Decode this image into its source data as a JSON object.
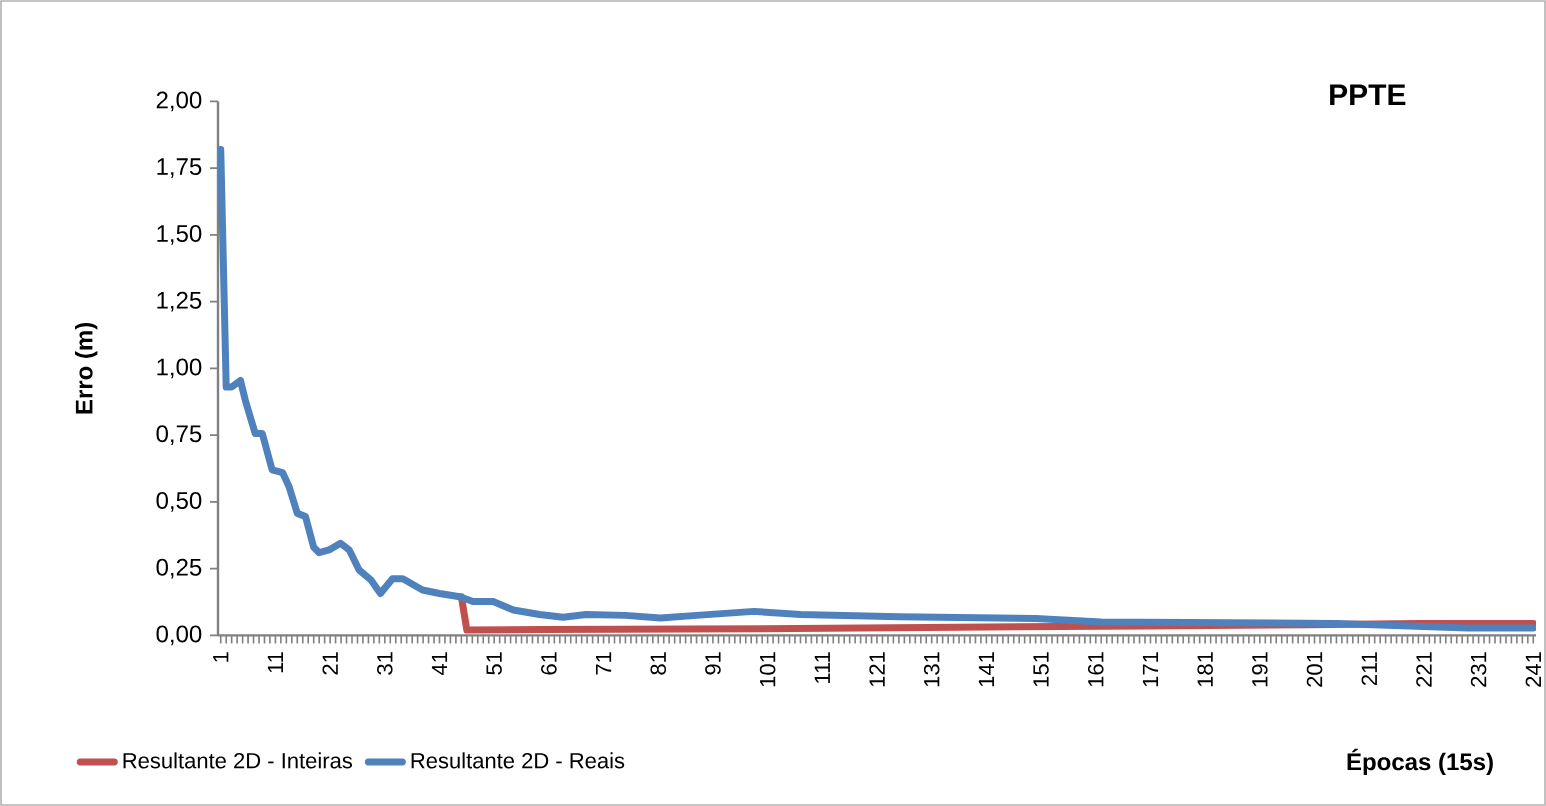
{
  "chart_data": {
    "type": "line",
    "title": "PPTE",
    "xlabel": "Épocas (15s)",
    "ylabel": "Erro  (m)",
    "xlim": [
      0.5,
      241.5
    ],
    "xticks": [
      1,
      11,
      21,
      31,
      41,
      51,
      61,
      71,
      81,
      91,
      101,
      111,
      121,
      131,
      141,
      151,
      161,
      171,
      181,
      191,
      201,
      211,
      221,
      231,
      241
    ],
    "ylim": [
      0,
      2
    ],
    "yticks": [
      {
        "value": 0,
        "label": "0,00"
      },
      {
        "value": 0.25,
        "label": "0,25"
      },
      {
        "value": 0.5,
        "label": "0,50"
      },
      {
        "value": 0.75,
        "label": "0,75"
      },
      {
        "value": 1,
        "label": "1,00"
      },
      {
        "value": 1.25,
        "label": "1,25"
      },
      {
        "value": 1.5,
        "label": "1,50"
      },
      {
        "value": 1.75,
        "label": "1,75"
      },
      {
        "value": 2,
        "label": "2,00"
      }
    ],
    "legend": "bottom",
    "marker": "none",
    "line_style": "solid",
    "series": [
      {
        "name": "Resultante 2D - Inteiras",
        "color": "#c0504d",
        "x": [
          45,
          46,
          60,
          100,
          130,
          170,
          200,
          220,
          241
        ],
        "values": [
          0.145,
          0.02,
          0.022,
          0.025,
          0.03,
          0.035,
          0.04,
          0.045,
          0.045
        ]
      },
      {
        "name": "Resultante 2D - Reais",
        "color": "#4f81bd",
        "x": [
          1,
          2,
          3,
          4.6,
          5.5,
          7.3,
          8.6,
          10.4,
          12.3,
          13.5,
          15,
          16.5,
          18,
          19,
          20.8,
          22.9,
          24.5,
          26.3,
          28.5,
          30.2,
          32.4,
          34.3,
          37.9,
          41,
          44.7,
          47.1,
          50.8,
          54.5,
          59.3,
          63.6,
          67.8,
          75,
          81.4,
          88,
          98.5,
          107,
          125,
          150,
          162,
          205,
          229,
          241
        ],
        "values": [
          1.82,
          0.93,
          0.93,
          0.955,
          0.88,
          0.756,
          0.756,
          0.62,
          0.61,
          0.557,
          0.457,
          0.445,
          0.33,
          0.31,
          0.32,
          0.345,
          0.32,
          0.245,
          0.207,
          0.157,
          0.212,
          0.212,
          0.17,
          0.157,
          0.145,
          0.127,
          0.127,
          0.095,
          0.078,
          0.068,
          0.078,
          0.075,
          0.065,
          0.075,
          0.09,
          0.078,
          0.07,
          0.063,
          0.05,
          0.045,
          0.028,
          0.028
        ]
      }
    ]
  }
}
